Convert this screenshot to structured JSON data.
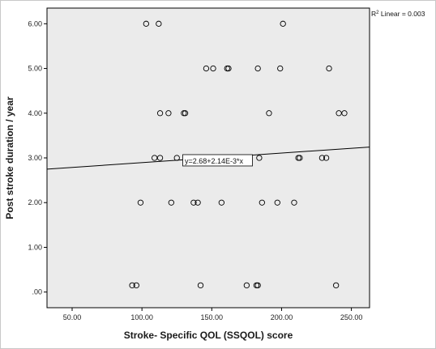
{
  "chart_data": {
    "type": "scatter",
    "xlabel": "Stroke- Specific QOL (SSQOL) score",
    "ylabel": "Post stroke duration / year",
    "xlim": [
      32,
      263
    ],
    "ylim": [
      -0.35,
      6.35
    ],
    "x_ticks": [
      50,
      100,
      150,
      200,
      250
    ],
    "x_tick_labels": [
      "50.00",
      "100.00",
      "150.00",
      "200.00",
      "250.00"
    ],
    "y_ticks": [
      0,
      1,
      2,
      3,
      4,
      5,
      6
    ],
    "y_tick_labels": [
      ".00",
      "1.00",
      "2.00",
      "3.00",
      "4.00",
      "5.00",
      "6.00"
    ],
    "grid": false,
    "r2": {
      "prefix": "R",
      "sup": "2",
      "suffix": " Linear = 0.003"
    },
    "fit_line": {
      "intercept": 2.68,
      "slope": 0.00214,
      "label": "y=2.68+2.14E-3*x"
    },
    "points": [
      {
        "x": 103,
        "y": 6
      },
      {
        "x": 112,
        "y": 6
      },
      {
        "x": 201,
        "y": 6
      },
      {
        "x": 146,
        "y": 5
      },
      {
        "x": 151,
        "y": 5
      },
      {
        "x": 161,
        "y": 5
      },
      {
        "x": 162,
        "y": 5
      },
      {
        "x": 183,
        "y": 5
      },
      {
        "x": 199,
        "y": 5
      },
      {
        "x": 234,
        "y": 5
      },
      {
        "x": 113,
        "y": 4
      },
      {
        "x": 119,
        "y": 4
      },
      {
        "x": 130,
        "y": 4
      },
      {
        "x": 131,
        "y": 4
      },
      {
        "x": 191,
        "y": 4
      },
      {
        "x": 241,
        "y": 4
      },
      {
        "x": 245,
        "y": 4
      },
      {
        "x": 109,
        "y": 3
      },
      {
        "x": 113,
        "y": 3
      },
      {
        "x": 125,
        "y": 3
      },
      {
        "x": 184,
        "y": 3
      },
      {
        "x": 212,
        "y": 3
      },
      {
        "x": 213,
        "y": 3
      },
      {
        "x": 229,
        "y": 3
      },
      {
        "x": 232,
        "y": 3
      },
      {
        "x": 99,
        "y": 2
      },
      {
        "x": 121,
        "y": 2
      },
      {
        "x": 137,
        "y": 2
      },
      {
        "x": 140,
        "y": 2
      },
      {
        "x": 157,
        "y": 2
      },
      {
        "x": 186,
        "y": 2
      },
      {
        "x": 197,
        "y": 2
      },
      {
        "x": 209,
        "y": 2
      },
      {
        "x": 93,
        "y": 0.15
      },
      {
        "x": 96,
        "y": 0.15
      },
      {
        "x": 142,
        "y": 0.15
      },
      {
        "x": 175,
        "y": 0.15
      },
      {
        "x": 182,
        "y": 0.15
      },
      {
        "x": 183,
        "y": 0.15
      },
      {
        "x": 239,
        "y": 0.15
      }
    ]
  }
}
